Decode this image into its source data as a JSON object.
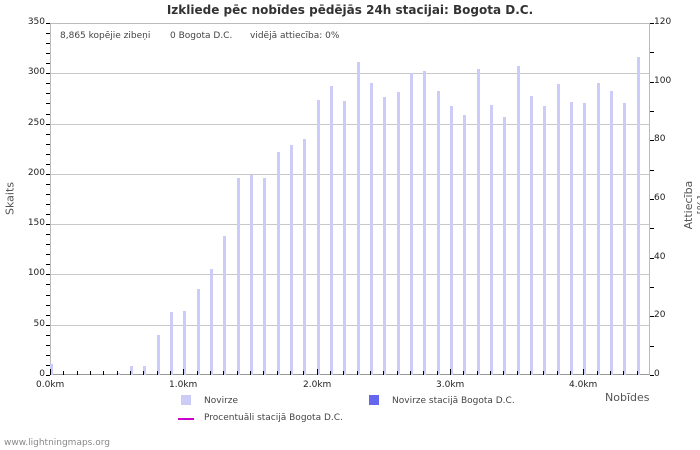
{
  "title": "Izkliede pēc nobīdes pēdējās 24h stacijai: Bogota D.C.",
  "info": {
    "total": "8,865 kopējie zibeņi",
    "station": "0 Bogota D.C.",
    "ratio": "vidējā attiecība: 0%"
  },
  "axes": {
    "ylabel_left": "Skaits",
    "ylabel_right": "Attiecība [%]",
    "xlabel": "Nobīdes",
    "left_ticks": [
      "0",
      "50",
      "100",
      "150",
      "200",
      "250",
      "300",
      "350"
    ],
    "right_ticks": [
      "0",
      "20",
      "40",
      "60",
      "80",
      "100",
      "120"
    ],
    "x_ticks": [
      "0.0km",
      "1.0km",
      "2.0km",
      "3.0km",
      "4.0km"
    ]
  },
  "legend": {
    "item1": "Novirze",
    "item2": "Novirze stacijā Bogota D.C.",
    "item3": "Procentuāli stacijā Bogota D.C."
  },
  "colors": {
    "bar": "#ccccf8",
    "station_bar": "#6666ee",
    "percent_line": "#cc00cc"
  },
  "footer": "www.lightningmaps.org",
  "chart_data": {
    "type": "bar",
    "title": "Izkliede pēc nobīdes pēdējās 24h stacijai: Bogota D.C.",
    "xlabel": "Nobīdes",
    "ylabel": "Skaits",
    "ylabel_right": "Attiecība [%]",
    "ylim": [
      0,
      350
    ],
    "ylim_right": [
      0,
      120
    ],
    "grid": true,
    "legend_position": "bottom",
    "categories": [
      "0.0",
      "0.1",
      "0.2",
      "0.3",
      "0.4",
      "0.5",
      "0.6",
      "0.7",
      "0.8",
      "0.9",
      "1.0",
      "1.1",
      "1.2",
      "1.3",
      "1.4",
      "1.5",
      "1.6",
      "1.7",
      "1.8",
      "1.9",
      "2.0",
      "2.1",
      "2.2",
      "2.3",
      "2.4",
      "2.5",
      "2.6",
      "2.7",
      "2.8",
      "2.9",
      "3.0",
      "3.1",
      "3.2",
      "3.3",
      "3.4",
      "3.5",
      "3.6",
      "3.7",
      "3.8",
      "3.9",
      "4.0",
      "4.1",
      "4.2",
      "4.3",
      "4.4"
    ],
    "series": [
      {
        "name": "Novirze",
        "values": [
          11,
          0,
          0,
          0,
          0,
          2,
          9,
          9,
          40,
          63,
          64,
          86,
          105,
          138,
          196,
          199,
          196,
          222,
          229,
          235,
          273,
          287,
          272,
          311,
          290,
          276,
          281,
          300,
          302,
          282,
          267,
          259,
          304,
          268,
          257,
          307,
          277,
          267,
          289,
          271,
          270,
          290,
          282,
          270,
          316
        ]
      },
      {
        "name": "Novirze stacijā Bogota D.C.",
        "values": [
          0,
          0,
          0,
          0,
          0,
          0,
          0,
          0,
          0,
          0,
          0,
          0,
          0,
          0,
          0,
          0,
          0,
          0,
          0,
          0,
          0,
          0,
          0,
          0,
          0,
          0,
          0,
          0,
          0,
          0,
          0,
          0,
          0,
          0,
          0,
          0,
          0,
          0,
          0,
          0,
          0,
          0,
          0,
          0,
          0
        ]
      },
      {
        "name": "Procentuāli stacijā Bogota D.C.",
        "values": [
          0,
          0,
          0,
          0,
          0,
          0,
          0,
          0,
          0,
          0,
          0,
          0,
          0,
          0,
          0,
          0,
          0,
          0,
          0,
          0,
          0,
          0,
          0,
          0,
          0,
          0,
          0,
          0,
          0,
          0,
          0,
          0,
          0,
          0,
          0,
          0,
          0,
          0,
          0,
          0,
          0,
          0,
          0,
          0,
          0
        ]
      }
    ]
  }
}
